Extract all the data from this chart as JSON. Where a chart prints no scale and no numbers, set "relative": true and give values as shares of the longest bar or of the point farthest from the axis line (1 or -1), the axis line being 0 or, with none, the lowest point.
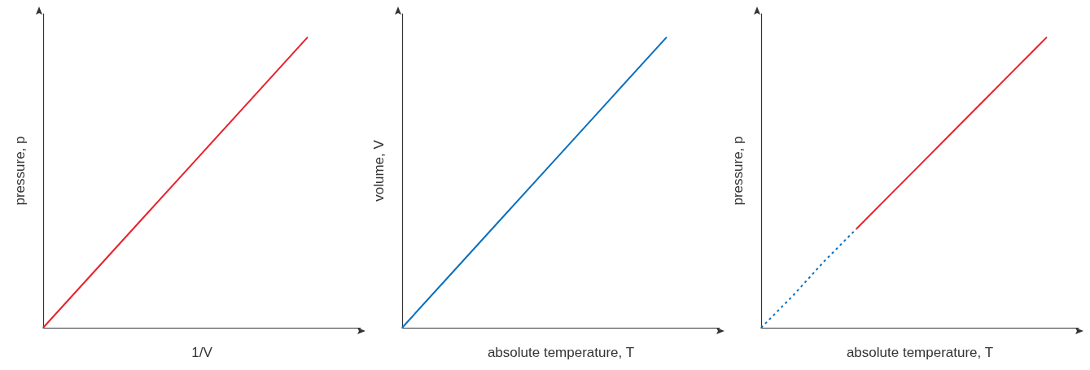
{
  "chart_data": [
    {
      "type": "line",
      "relative": true,
      "xlabel": "1/V",
      "ylabel": "pressure, p",
      "marker": "none",
      "categories": [
        null,
        null,
        null,
        null,
        null,
        null,
        null
      ],
      "series": [
        {
          "color": "#e8212b",
          "line_style": "solid",
          "values": [
            0,
            0.2,
            0.4,
            0.6,
            0.8,
            1,
            null
          ]
        }
      ]
    },
    {
      "type": "line",
      "relative": true,
      "xlabel": "absolute temperature, T",
      "ylabel": "volume, V",
      "marker": "none",
      "categories": [
        null,
        null,
        null,
        null,
        null,
        null,
        null
      ],
      "series": [
        {
          "color": "#0a6fbd",
          "line_style": "solid",
          "values": [
            0,
            0.2,
            0.4,
            0.6,
            0.8,
            1,
            null
          ]
        }
      ]
    },
    {
      "type": "line",
      "relative": true,
      "xlabel": "absolute temperature, T",
      "ylabel": "pressure, p",
      "marker": "none",
      "categories": [
        null,
        null,
        null,
        null,
        null,
        null,
        null,
        null,
        null,
        null,
        null
      ],
      "series": [
        {
          "color": "#0a6fbd",
          "line_style": "dotted",
          "values": [
            0,
            0.11,
            0.23,
            0.34,
            null,
            null,
            null,
            null,
            null,
            null,
            null
          ]
        },
        {
          "color": "#e8212b",
          "line_style": "solid",
          "values": [
            null,
            null,
            null,
            0.34,
            0.45,
            0.56,
            0.67,
            0.78,
            0.89,
            1,
            null
          ]
        }
      ]
    }
  ]
}
